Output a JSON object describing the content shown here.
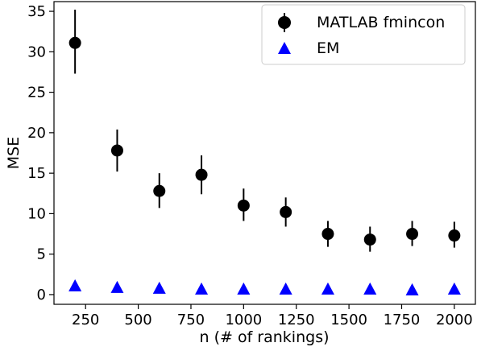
{
  "chart_data": {
    "type": "scatter",
    "xlabel": "n (# of rankings)",
    "ylabel": "MSE",
    "xlim": [
      100,
      2100
    ],
    "ylim": [
      -1.2,
      36.2
    ],
    "xticks": [
      250,
      500,
      750,
      1000,
      1250,
      1500,
      1750,
      2000
    ],
    "yticks": [
      0,
      5,
      10,
      15,
      20,
      25,
      30,
      35
    ],
    "grid": false,
    "legend_position": "top-right",
    "series": [
      {
        "name": "MATLAB fmincon",
        "marker": "circle",
        "color": "#000000",
        "x": [
          200,
          400,
          600,
          800,
          1000,
          1200,
          1400,
          1600,
          1800,
          2000
        ],
        "y": [
          31.1,
          17.8,
          12.8,
          14.8,
          11.0,
          10.2,
          7.5,
          6.8,
          7.5,
          7.3
        ],
        "yerr_low": [
          27.3,
          15.2,
          10.7,
          12.4,
          9.1,
          8.4,
          5.9,
          5.3,
          6.0,
          5.8
        ],
        "yerr_high": [
          35.2,
          20.4,
          15.0,
          17.2,
          13.1,
          12.0,
          9.1,
          8.4,
          9.1,
          9.0
        ]
      },
      {
        "name": "EM",
        "marker": "triangle",
        "color": "#0000ff",
        "x": [
          200,
          400,
          600,
          800,
          1000,
          1200,
          1400,
          1600,
          1800,
          2000
        ],
        "y": [
          1.1,
          0.9,
          0.8,
          0.7,
          0.7,
          0.7,
          0.7,
          0.7,
          0.6,
          0.7
        ]
      }
    ]
  }
}
